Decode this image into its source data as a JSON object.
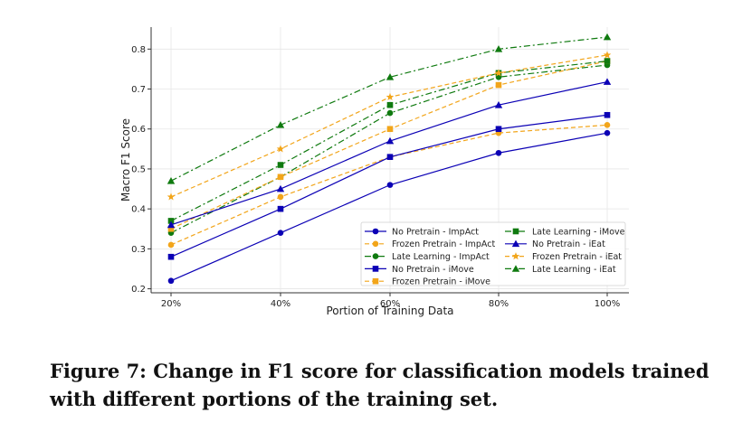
{
  "caption": "Figure 7: Change in F1 score for classification models trained with different portions of the training set.",
  "chart_data": {
    "type": "line",
    "xlabel": "Portion of Training Data",
    "ylabel": "Macro F1 Score",
    "categories": [
      "20%",
      "40%",
      "60%",
      "80%",
      "100%"
    ],
    "yticks": [
      0.2,
      0.3,
      0.4,
      0.5,
      0.6,
      0.7,
      0.8
    ],
    "ylim": [
      0.19,
      0.855
    ],
    "grid": true,
    "legend_position": "lower-right",
    "series": [
      {
        "name": "No Pretrain - ImpAct",
        "values": [
          0.22,
          0.34,
          0.46,
          0.54,
          0.59
        ],
        "color": "#0b00b5",
        "marker": "circle",
        "dash": "solid"
      },
      {
        "name": "Frozen Pretrain - ImpAct",
        "values": [
          0.31,
          0.43,
          0.53,
          0.59,
          0.61
        ],
        "color": "#f2a51a",
        "marker": "circle",
        "dash": "dashed"
      },
      {
        "name": "Late Learning - ImpAct",
        "values": [
          0.34,
          0.48,
          0.64,
          0.73,
          0.76
        ],
        "color": "#0f7a0f",
        "marker": "circle",
        "dash": "dashdot"
      },
      {
        "name": "No Pretrain - iMove",
        "values": [
          0.28,
          0.4,
          0.53,
          0.6,
          0.635
        ],
        "color": "#0b00b5",
        "marker": "square",
        "dash": "solid"
      },
      {
        "name": "Frozen Pretrain - iMove",
        "values": [
          0.35,
          0.48,
          0.6,
          0.71,
          0.77
        ],
        "color": "#f2a51a",
        "marker": "square",
        "dash": "dashed"
      },
      {
        "name": "Late Learning - iMove",
        "values": [
          0.37,
          0.51,
          0.66,
          0.74,
          0.77
        ],
        "color": "#0f7a0f",
        "marker": "square",
        "dash": "dashdot"
      },
      {
        "name": "No Pretrain - iEat",
        "values": [
          0.36,
          0.45,
          0.57,
          0.66,
          0.718
        ],
        "color": "#0b00b5",
        "marker": "triangle",
        "dash": "solid"
      },
      {
        "name": "Frozen Pretrain - iEat",
        "values": [
          0.43,
          0.55,
          0.68,
          0.74,
          0.785
        ],
        "color": "#f2a51a",
        "marker": "star",
        "dash": "dashed"
      },
      {
        "name": "Late Learning - iEat",
        "values": [
          0.47,
          0.61,
          0.73,
          0.8,
          0.83
        ],
        "color": "#0f7a0f",
        "marker": "triangle",
        "dash": "dashdot"
      }
    ]
  }
}
